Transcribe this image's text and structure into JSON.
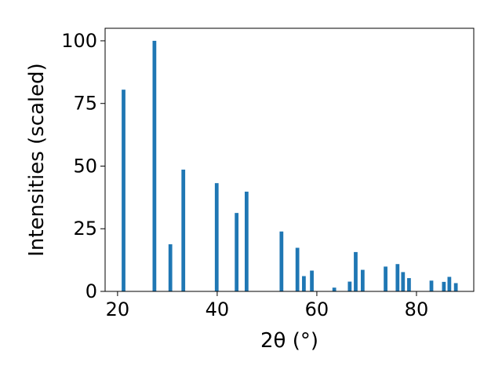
{
  "chart_data": {
    "type": "bar",
    "xlabel": "2θ (°)",
    "ylabel": "Intensities (scaled)",
    "xlim": [
      17.5,
      91.5
    ],
    "ylim": [
      0,
      105
    ],
    "grid": false,
    "color": "#1f77b4",
    "x_ticks": [
      20,
      40,
      60,
      80
    ],
    "y_ticks": [
      0,
      25,
      50,
      75,
      100
    ],
    "bar_width": 0.75,
    "peaks": [
      {
        "x": 21.2,
        "y": 80.5
      },
      {
        "x": 27.4,
        "y": 100.0
      },
      {
        "x": 30.6,
        "y": 18.8
      },
      {
        "x": 33.2,
        "y": 48.6
      },
      {
        "x": 39.9,
        "y": 43.2
      },
      {
        "x": 43.9,
        "y": 31.3
      },
      {
        "x": 45.9,
        "y": 39.8
      },
      {
        "x": 52.9,
        "y": 23.9
      },
      {
        "x": 56.1,
        "y": 17.4
      },
      {
        "x": 57.4,
        "y": 6.1
      },
      {
        "x": 59.0,
        "y": 8.3
      },
      {
        "x": 63.5,
        "y": 1.5
      },
      {
        "x": 66.6,
        "y": 3.9
      },
      {
        "x": 67.8,
        "y": 15.7
      },
      {
        "x": 69.2,
        "y": 8.6
      },
      {
        "x": 73.8,
        "y": 9.9
      },
      {
        "x": 76.2,
        "y": 10.9
      },
      {
        "x": 77.3,
        "y": 7.7
      },
      {
        "x": 78.5,
        "y": 5.3
      },
      {
        "x": 83.0,
        "y": 4.3
      },
      {
        "x": 85.5,
        "y": 3.8
      },
      {
        "x": 86.6,
        "y": 5.8
      },
      {
        "x": 87.9,
        "y": 3.3
      }
    ]
  }
}
